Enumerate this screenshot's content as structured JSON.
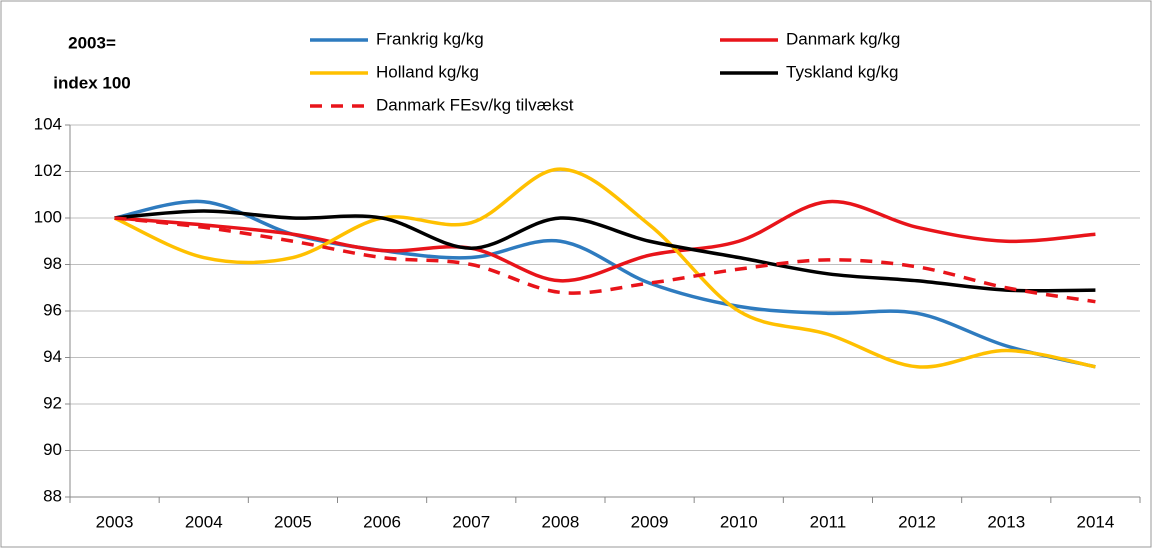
{
  "chart_data": {
    "type": "line",
    "y_label": [
      "2003=",
      "index 100"
    ],
    "categories": [
      "2003",
      "2004",
      "2005",
      "2006",
      "2007",
      "2008",
      "2009",
      "2010",
      "2011",
      "2012",
      "2013",
      "2014"
    ],
    "series": [
      {
        "name": "Frankrig kg/kg",
        "color": "#2e7bbf",
        "dash": false,
        "values": [
          100,
          100.7,
          99.3,
          98.6,
          98.3,
          99.0,
          97.2,
          96.2,
          95.9,
          95.9,
          94.5,
          93.6
        ]
      },
      {
        "name": "Danmark kg/kg",
        "color": "#e8141a",
        "dash": false,
        "values": [
          100,
          99.7,
          99.3,
          98.6,
          98.7,
          97.3,
          98.4,
          99.0,
          100.7,
          99.6,
          99.0,
          99.3
        ]
      },
      {
        "name": "Holland kg/kg",
        "color": "#ffc000",
        "dash": false,
        "values": [
          100,
          98.3,
          98.3,
          100.0,
          99.8,
          102.1,
          99.7,
          96.0,
          95.0,
          93.6,
          94.3,
          93.6
        ]
      },
      {
        "name": "Tyskland kg/kg",
        "color": "#000000",
        "dash": false,
        "values": [
          100,
          100.3,
          100.0,
          100.0,
          98.7,
          100.0,
          99.0,
          98.3,
          97.6,
          97.3,
          96.9,
          96.9
        ]
      },
      {
        "name": "Danmark FEsv/kg tilvækst",
        "color": "#e8141a",
        "dash": true,
        "values": [
          100,
          99.6,
          99.0,
          98.3,
          98.0,
          96.8,
          97.2,
          97.8,
          98.2,
          97.9,
          97.0,
          96.4
        ]
      }
    ],
    "ylim": [
      88,
      104
    ],
    "yticks": [
      88,
      90,
      92,
      94,
      96,
      98,
      100,
      102,
      104
    ],
    "grid": true,
    "smooth": true
  }
}
